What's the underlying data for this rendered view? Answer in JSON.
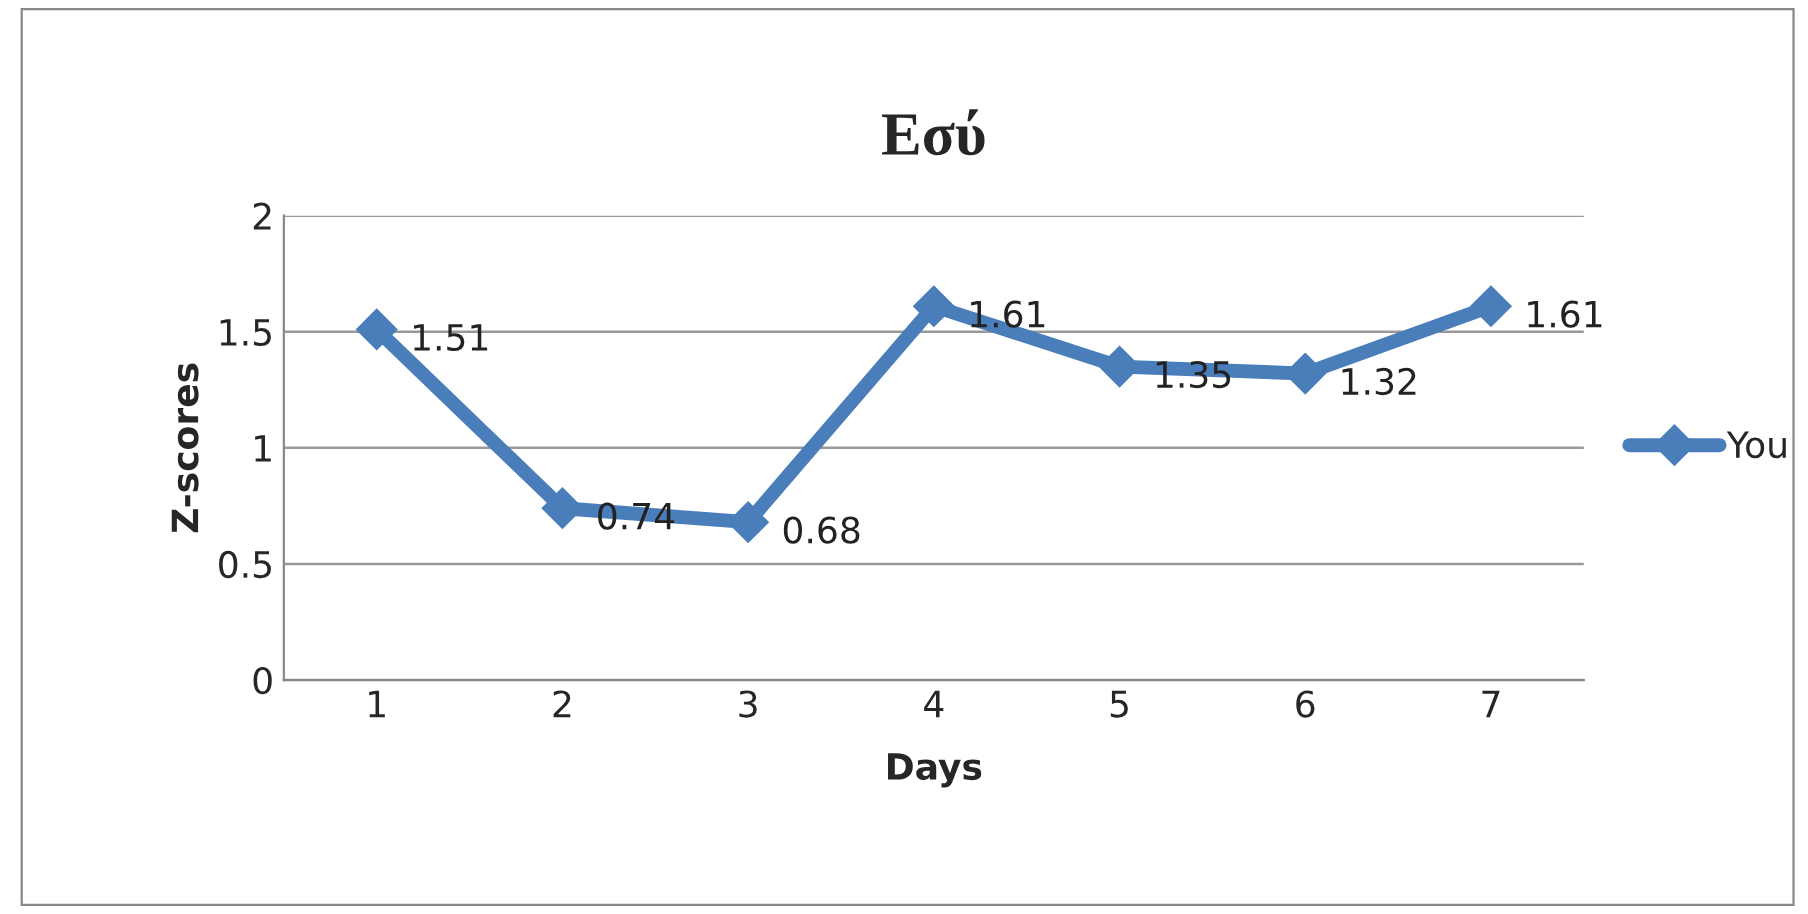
{
  "chart_data": {
    "type": "line",
    "title": "Εσύ",
    "xlabel": "Days",
    "ylabel": "Z-scores",
    "categories": [
      "1",
      "2",
      "3",
      "4",
      "5",
      "6",
      "7"
    ],
    "series": [
      {
        "name": "You",
        "color": "#4a7ebb",
        "values": [
          1.51,
          0.74,
          0.68,
          1.61,
          1.35,
          1.32,
          1.61
        ]
      }
    ],
    "ylim": [
      0,
      2
    ],
    "yticks": [
      0,
      0.5,
      1,
      1.5,
      2
    ],
    "grid": "y",
    "legend": "right",
    "marker": "diamond",
    "line_style": "solid",
    "data_labels": true
  }
}
